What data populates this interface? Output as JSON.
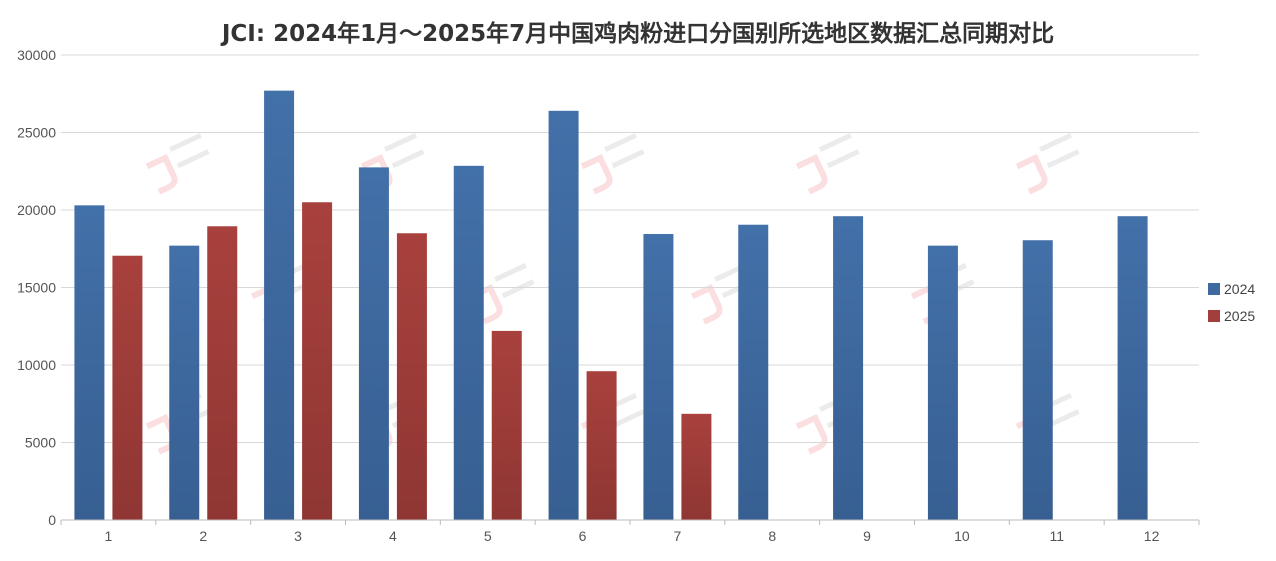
{
  "chart_data": {
    "type": "bar",
    "title": "JCI: 2024年1月～2025年7月中国鸡肉粉进口分国别所选地区数据汇总同期对比",
    "xlabel": "",
    "ylabel": "",
    "categories": [
      "1",
      "2",
      "3",
      "4",
      "5",
      "6",
      "7",
      "8",
      "9",
      "10",
      "11",
      "12"
    ],
    "series": [
      {
        "name": "2024",
        "color": "#3e6aa0",
        "values": [
          20300,
          17700,
          27700,
          22750,
          22850,
          26400,
          18450,
          19050,
          19600,
          17700,
          18050,
          19600
        ]
      },
      {
        "name": "2025",
        "color": "#a23e3b",
        "values": [
          17050,
          18950,
          20500,
          18500,
          12200,
          9600,
          6850,
          null,
          null,
          null,
          null,
          null
        ]
      }
    ],
    "ylim": [
      0,
      30000
    ],
    "yticks": [
      0,
      5000,
      10000,
      15000,
      20000,
      25000,
      30000
    ],
    "grid": true,
    "legend_position": "right"
  }
}
